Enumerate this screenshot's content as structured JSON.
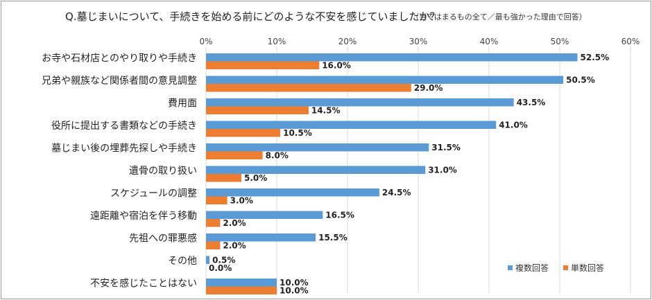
{
  "chart_data": {
    "type": "bar",
    "orientation": "horizontal",
    "title": "Q.墓じまいについて、手続きを始める前にどのような不安を感じていましたか？",
    "subtitle": "（当てはまるもの全て／最も強かった理由で回答）",
    "xlim": [
      0,
      60
    ],
    "ticks": [
      "0%",
      "10%",
      "20%",
      "30%",
      "40%",
      "50%",
      "60%"
    ],
    "grid": true,
    "legend_position": "bottom-right",
    "categories": [
      "お寺や石材店とのやり取りや手続き",
      "兄弟や親族など関係者間の意見調整",
      "費用面",
      "役所に提出する書類などの手続き",
      "墓じまい後の埋葬先探しや手続き",
      "遺骨の取り扱い",
      "スケジュールの調整",
      "遠距離や宿泊を伴う移動",
      "先祖への罪悪感",
      "その他",
      "不安を感じたことはない"
    ],
    "series": [
      {
        "name": "複数回答",
        "color": "#5b9bd5",
        "values": [
          52.5,
          50.5,
          43.5,
          41.0,
          31.5,
          31.0,
          24.5,
          16.5,
          15.5,
          0.5,
          10.0
        ],
        "labels": [
          "52.5%",
          "50.5%",
          "43.5%",
          "41.0%",
          "31.5%",
          "31.0%",
          "24.5%",
          "16.5%",
          "15.5%",
          "0.5%",
          "10.0%"
        ]
      },
      {
        "name": "単数回答",
        "color": "#ed7d31",
        "values": [
          16.0,
          29.0,
          14.5,
          10.5,
          8.0,
          5.0,
          3.0,
          2.0,
          2.0,
          0.0,
          10.0
        ],
        "labels": [
          "16.0%",
          "29.0%",
          "14.5%",
          "10.5%",
          "8.0%",
          "5.0%",
          "3.0%",
          "2.0%",
          "2.0%",
          "0.0%",
          "10.0%"
        ]
      }
    ]
  }
}
